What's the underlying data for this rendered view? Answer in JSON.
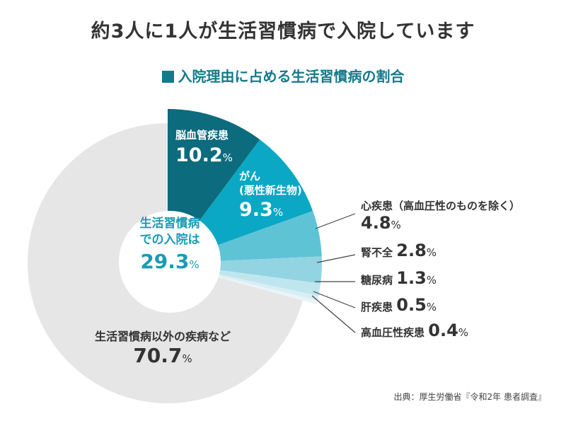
{
  "title": "約3人に1人が生活習慣病で入院しています",
  "subtitle": "入院理由に占める生活習慣病の割合",
  "center_label": {
    "line1": "生活習慣病",
    "line2": "での入院は",
    "value": "29.3",
    "unit": "%"
  },
  "source": "出典：厚生労働省『令和2年 患者調査』",
  "chart_data": {
    "type": "pie",
    "title": "入院理由に占める生活習慣病の割合",
    "start": "12 o'clock, clockwise",
    "unit": "%",
    "slices": [
      {
        "name": "脳血管疾患",
        "value": 10.2,
        "label": "10.2",
        "color": "#0c6b7c"
      },
      {
        "name": "がん",
        "name2": "(悪性新生物)",
        "value": 9.3,
        "label": "9.3",
        "color": "#0aa8c4"
      },
      {
        "name": "心疾患（高血圧性のものを除く）",
        "value": 4.8,
        "label": "4.8",
        "color": "#5fc3d6"
      },
      {
        "name": "腎不全",
        "value": 2.8,
        "label": "2.8",
        "color": "#93d4e2"
      },
      {
        "name": "糖尿病",
        "value": 1.3,
        "label": "1.3",
        "color": "#bfe6ef"
      },
      {
        "name": "肝疾患",
        "value": 0.5,
        "label": "0.5",
        "color": "#d8eef4"
      },
      {
        "name": "高血圧性疾患",
        "value": 0.4,
        "label": "0.4",
        "color": "#eaf4f8"
      },
      {
        "name": "生活習慣病以外の疾病など",
        "value": 70.7,
        "label": "70.7",
        "color": "#e6e6e6"
      }
    ]
  }
}
